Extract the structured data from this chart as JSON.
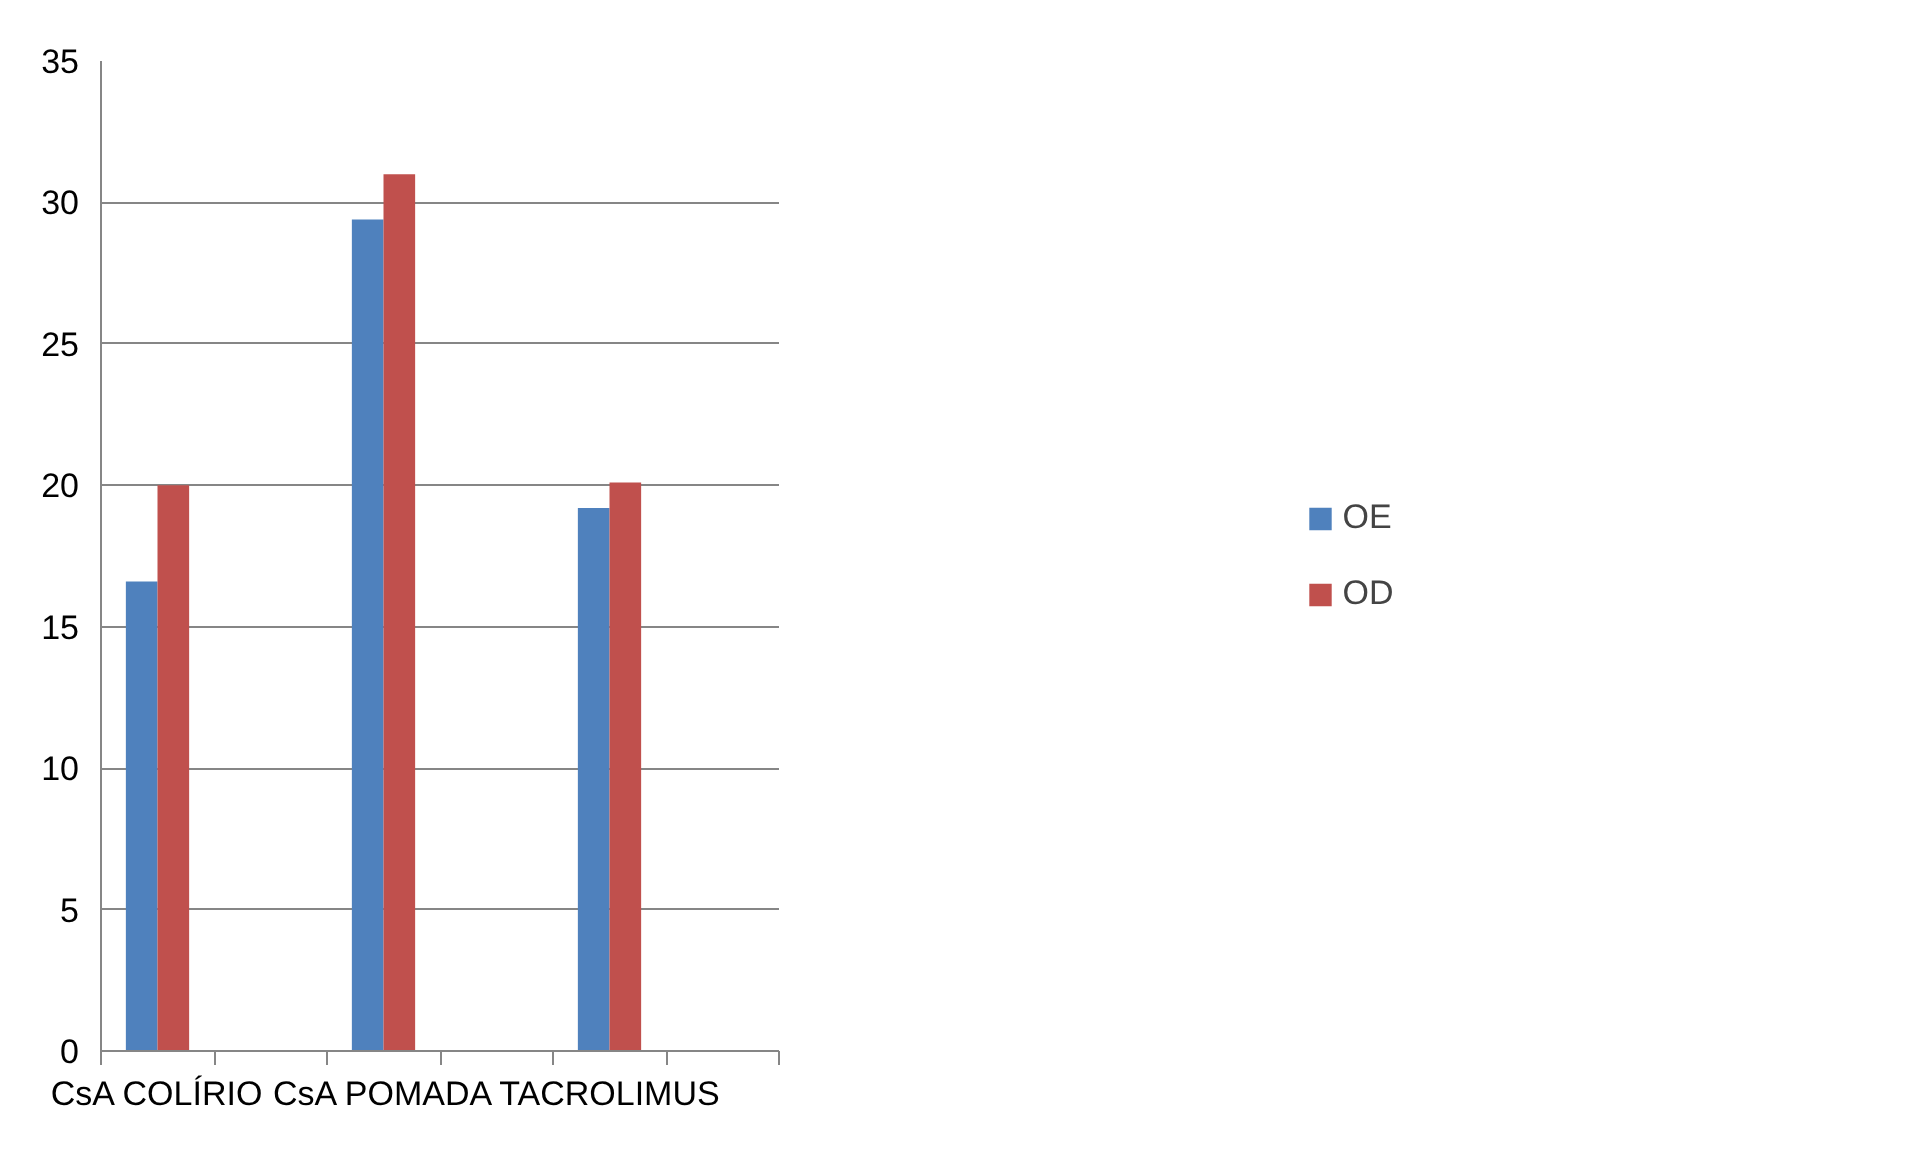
{
  "chart_data": {
    "type": "bar",
    "categories": [
      "CsA COLÍRIO",
      null,
      "CsA POMADA",
      null,
      "TACROLIMUS",
      null
    ],
    "series": [
      {
        "name": "OE",
        "color": "#4f81bd",
        "values": [
          16.6,
          null,
          29.4,
          null,
          19.2,
          null
        ]
      },
      {
        "name": "OD",
        "color": "#c0504d",
        "values": [
          20.0,
          null,
          31.0,
          null,
          20.1,
          null
        ]
      }
    ],
    "ylim": [
      0,
      35
    ],
    "yticks": [
      0,
      5,
      10,
      15,
      20,
      25,
      30,
      35
    ],
    "grid": "y",
    "legend": "right"
  }
}
